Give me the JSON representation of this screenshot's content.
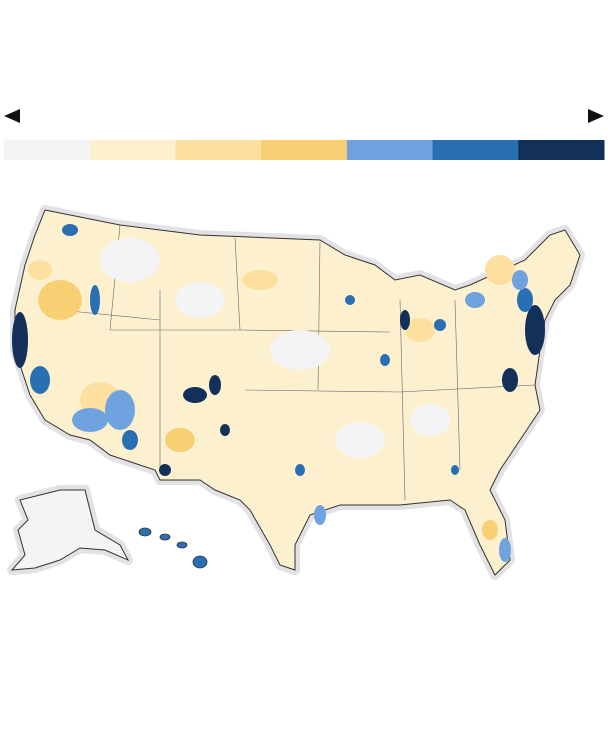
{
  "legend": {
    "colors": [
      "#f4f4f6",
      "#fdf0cf",
      "#fde09f",
      "#f9cf73",
      "#6fa3e0",
      "#2b6fb3",
      "#12305a"
    ]
  }
}
